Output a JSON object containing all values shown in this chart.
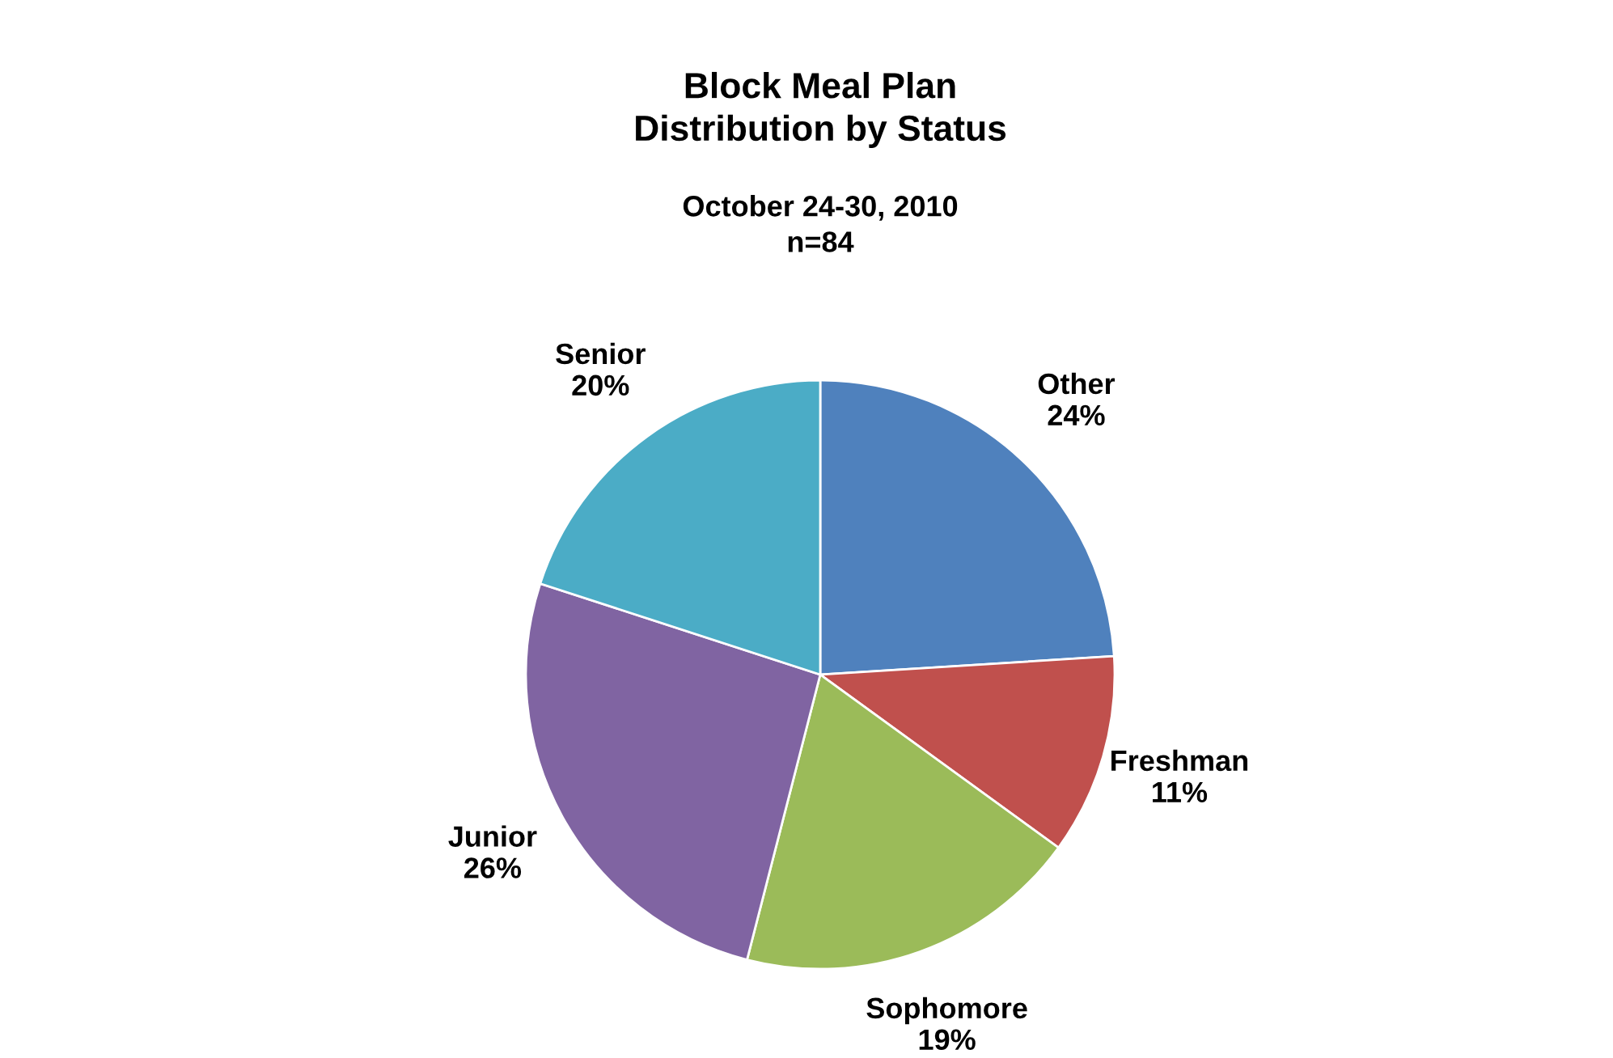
{
  "chart_data": {
    "type": "pie",
    "title": "Block Meal Plan\nDistribution by Status",
    "subtitle": "October 24-30, 2010\nn=84",
    "categories": [
      "Other",
      "Freshman",
      "Sophomore",
      "Junior",
      "Senior"
    ],
    "values": [
      24,
      11,
      19,
      26,
      20
    ],
    "colors": [
      "#4f81bd",
      "#c0504d",
      "#9bbb59",
      "#8064a2",
      "#4bacc6"
    ],
    "value_labels": [
      "24%",
      "11%",
      "19%",
      "26%",
      "20%"
    ],
    "legend": false
  }
}
